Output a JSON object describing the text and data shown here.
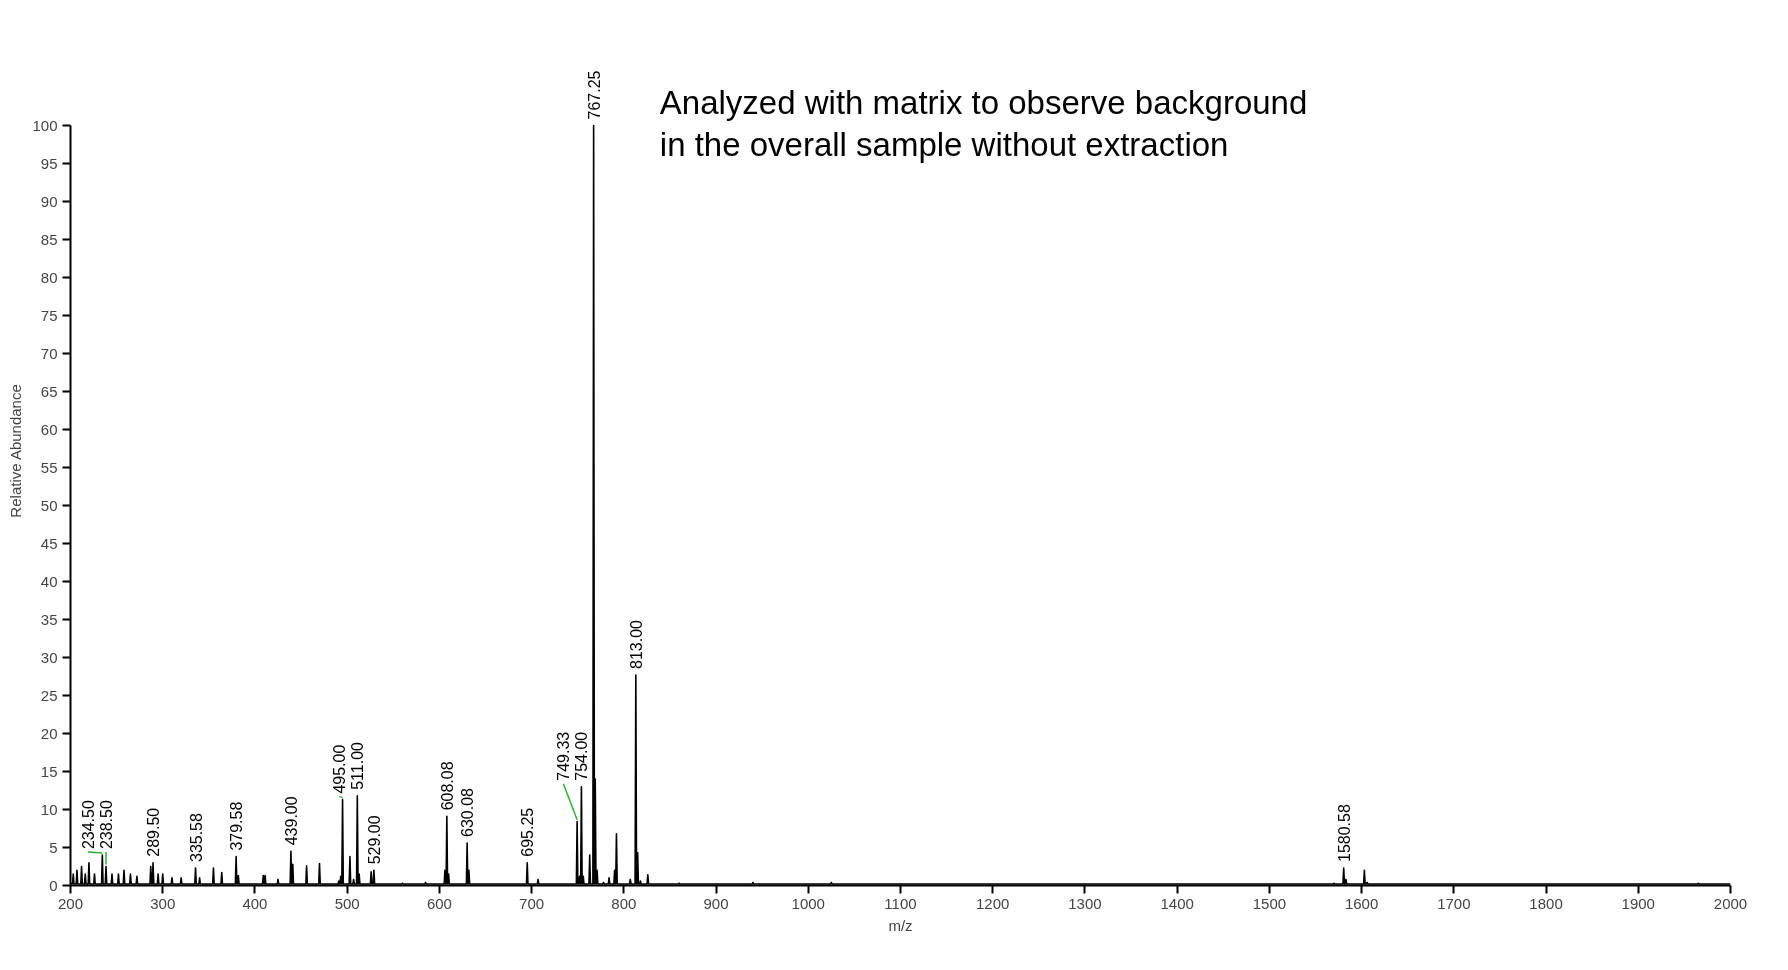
{
  "chart_data": {
    "type": "line",
    "title": "Analyzed with matrix to observe background in the overall sample without extraction",
    "xlabel": "m/z",
    "ylabel": "Relative Abundance",
    "xlim": [
      200,
      2000
    ],
    "ylim": [
      0,
      100
    ],
    "xticks": [
      200,
      300,
      400,
      500,
      600,
      700,
      800,
      900,
      1000,
      1100,
      1200,
      1300,
      1400,
      1500,
      1600,
      1700,
      1800,
      1900,
      2000
    ],
    "yticks": [
      0,
      5,
      10,
      15,
      20,
      25,
      30,
      35,
      40,
      45,
      50,
      55,
      60,
      65,
      70,
      75,
      80,
      85,
      90,
      95,
      100
    ],
    "grid": false,
    "line_style": "solid",
    "series": [
      {
        "color": "#000000",
        "x": [
          200,
          202.2,
          203,
          203.8,
          206.2,
          207,
          207.8,
          211.2,
          212,
          212.8,
          215.2,
          216,
          216.8,
          219.2,
          220,
          220.8,
          225.2,
          226,
          226.8,
          233.7,
          234.5,
          235.3,
          237.7,
          238.5,
          239.3,
          244.2,
          245,
          245.8,
          251.2,
          252,
          252.8,
          257.2,
          258,
          258.8,
          264.2,
          265,
          265.8,
          271.2,
          272,
          272.8,
          286.2,
          287,
          287.8,
          288.7,
          289.5,
          290.3,
          294.2,
          295,
          295.8,
          299.2,
          300,
          300.8,
          309.2,
          310,
          310.8,
          319.2,
          320,
          320.8,
          334.78,
          335.58,
          336.38,
          339.2,
          340,
          340.8,
          354.2,
          355,
          355.8,
          363.2,
          364,
          364.8,
          378.78,
          379.58,
          380.38,
          381.2,
          382,
          382.8,
          408.2,
          409,
          409.8,
          410.2,
          411,
          411.8,
          424.2,
          425,
          425.8,
          438.2,
          439,
          439.8,
          440.2,
          441,
          441.8,
          455.2,
          456,
          456.8,
          469.2,
          470,
          470.8,
          490.2,
          491,
          491.8,
          492.2,
          493,
          493.8,
          494.2,
          495,
          495.8,
          502.2,
          503,
          503.8,
          506.2,
          507,
          507.8,
          510.2,
          511,
          511.8,
          512.2,
          513,
          513.8,
          525.2,
          526,
          526.8,
          528.2,
          529,
          529.8,
          559.2,
          560,
          560.8,
          584.2,
          585,
          585.8,
          605.2,
          606,
          606.8,
          607.28,
          608.08,
          608.88,
          609.2,
          610,
          610.8,
          629.28,
          630.08,
          630.88,
          631.2,
          632,
          632.8,
          694.45,
          695.25,
          696.05,
          706.2,
          707,
          707.8,
          748.53,
          749.33,
          750.13,
          751.2,
          752,
          752.8,
          753.2,
          754,
          754.8,
          755.2,
          756,
          756.8,
          762.2,
          763,
          763.8,
          766.45,
          767.25,
          768.05,
          768.2,
          769,
          769.8,
          770.2,
          771,
          771.8,
          777.2,
          778,
          778.8,
          783.2,
          784,
          784.8,
          789.2,
          790,
          790.8,
          791.2,
          792,
          792.8,
          806.2,
          807,
          807.8,
          812.2,
          813,
          813.8,
          814.2,
          815,
          815.8,
          817.2,
          818,
          818.8,
          825.2,
          826,
          826.8,
          859.2,
          860,
          860.8,
          939.2,
          940,
          940.8,
          1024.2,
          1025,
          1025.8,
          1569.2,
          1570,
          1570.8,
          1579.78,
          1580.58,
          1581.38,
          1582.2,
          1583,
          1583.8,
          1602.2,
          1603,
          1603.8,
          1605.2,
          1606,
          1606.8,
          1964.2,
          1965,
          1965.8,
          2000
        ],
        "values": [
          0.3,
          0.2,
          1.5,
          0.2,
          0.2,
          2,
          0.2,
          0.2,
          2.5,
          0.2,
          0.2,
          1.5,
          0.2,
          0.2,
          3,
          0.2,
          0.2,
          1.5,
          0.2,
          0.2,
          4,
          0.2,
          0.2,
          2.5,
          0.2,
          0.2,
          1.5,
          0.2,
          0.2,
          1.5,
          0.2,
          0.2,
          2,
          0.2,
          0.2,
          1.5,
          0.2,
          0.2,
          1.2,
          0.2,
          0.2,
          2.5,
          0.2,
          0.2,
          3,
          0.2,
          0.2,
          1.5,
          0.2,
          0.2,
          1.5,
          0.2,
          0.2,
          1,
          0.2,
          0.2,
          1,
          0.2,
          0.2,
          2.3,
          0.2,
          0.2,
          1,
          0.2,
          0.2,
          2.3,
          0.2,
          0.2,
          1.7,
          0.2,
          0.2,
          3.8,
          0.2,
          0.2,
          1.3,
          0.2,
          0.2,
          1.3,
          0.2,
          0.2,
          1.3,
          0.2,
          0.2,
          0.8,
          0.2,
          0.2,
          4.5,
          0.2,
          0.2,
          2.8,
          0.2,
          0.2,
          2.6,
          0.2,
          0.2,
          2.9,
          0.2,
          0.2,
          0.6,
          0.2,
          0.2,
          1.2,
          0.2,
          0.2,
          11.3,
          0.2,
          0.2,
          3.8,
          0.2,
          0.2,
          0.8,
          0.2,
          0.2,
          11.8,
          0.2,
          0.2,
          1.5,
          0.2,
          0.2,
          1.8,
          0.2,
          0.2,
          2,
          0.2,
          0.2,
          0.3,
          0.2,
          0.2,
          0.4,
          0.2,
          0.2,
          2,
          0.2,
          0.2,
          9.1,
          0.2,
          0.2,
          1.5,
          0.2,
          0.2,
          5.6,
          0.2,
          0.2,
          2,
          0.2,
          0.2,
          3,
          0.2,
          0.2,
          0.8,
          0.2,
          0.2,
          8.4,
          0.2,
          0.2,
          1.2,
          0.2,
          0.2,
          13,
          0.2,
          0.2,
          1.2,
          0.2,
          0.2,
          4,
          0.2,
          0.2,
          100,
          0.2,
          0.2,
          14,
          0.2,
          0.2,
          2,
          0.2,
          0.2,
          0.4,
          0.2,
          0.2,
          1,
          0.2,
          0.2,
          2,
          0.2,
          0.2,
          6.8,
          0.2,
          0.2,
          0.8,
          0.2,
          0.2,
          27.7,
          0.2,
          0.2,
          4.3,
          0.2,
          0.2,
          0.6,
          0.2,
          0.2,
          1.4,
          0.2,
          0.2,
          0.3,
          0.2,
          0.2,
          0.4,
          0.2,
          0.2,
          0.4,
          0.2,
          0.2,
          0.3,
          0.2,
          0.2,
          2.3,
          0.2,
          0.2,
          0.8,
          0.2,
          0.2,
          2,
          0.2,
          0.2,
          0.4,
          0.2,
          0.2,
          0.3,
          0.2,
          0.2
        ]
      }
    ],
    "annotations": [
      {
        "text": "234.50",
        "x": 234.5,
        "y": 4
      },
      {
        "text": "238.50",
        "x": 238.5,
        "y": 2.5
      },
      {
        "text": "289.50",
        "x": 289.5,
        "y": 3
      },
      {
        "text": "335.58",
        "x": 335.58,
        "y": 2.3
      },
      {
        "text": "379.58",
        "x": 379.58,
        "y": 3.8
      },
      {
        "text": "439.00",
        "x": 439,
        "y": 4.5
      },
      {
        "text": "495.00",
        "x": 495,
        "y": 11.3
      },
      {
        "text": "511.00",
        "x": 511,
        "y": 11.8
      },
      {
        "text": "529.00",
        "x": 529,
        "y": 2
      },
      {
        "text": "608.08",
        "x": 608.08,
        "y": 9.1
      },
      {
        "text": "630.08",
        "x": 630.08,
        "y": 5.6
      },
      {
        "text": "695.25",
        "x": 695.25,
        "y": 3
      },
      {
        "text": "749.33",
        "x": 749.33,
        "y": 8.4
      },
      {
        "text": "754.00",
        "x": 754,
        "y": 13
      },
      {
        "text": "767.25",
        "x": 767.25,
        "y": 100
      },
      {
        "text": "813.00",
        "x": 813,
        "y": 27.7
      },
      {
        "text": "1580.58",
        "x": 1580.58,
        "y": 2.3
      }
    ]
  }
}
